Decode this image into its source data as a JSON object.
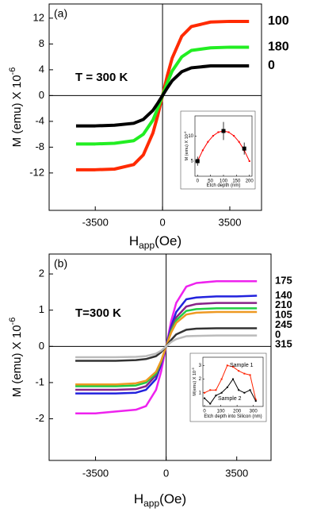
{
  "chart_data": [
    {
      "type": "line",
      "panel_label": "(a)",
      "annotation": "T = 300 K",
      "ylabel": "M (emu) X 10",
      "ylabel_exponent": "-6",
      "xlabel": "H",
      "xlabel_subscript": "app",
      "xlabel_unit": "(Oe)",
      "xlim": [
        -5900,
        5150
      ],
      "xticks": [
        -3500,
        0,
        3500
      ],
      "ylim": [
        -17.8,
        14.2
      ],
      "yticks": [
        -12,
        -8,
        -4,
        0,
        4,
        8,
        12
      ],
      "zero_lines": true,
      "legend": "right",
      "x": [
        -4500,
        -3500,
        -2500,
        -1500,
        -1000,
        -500,
        -250,
        0,
        250,
        500,
        1000,
        1500,
        2500,
        3500,
        4500
      ],
      "series": [
        {
          "name": "100",
          "color": "#ff2a00",
          "values": [
            -11.5,
            -11.5,
            -11.4,
            -10.7,
            -9.2,
            -5.8,
            -3.1,
            0,
            3.1,
            5.8,
            9.2,
            10.7,
            11.4,
            11.5,
            11.5
          ]
        },
        {
          "name": "180",
          "color": "#22ee22",
          "values": [
            -7.5,
            -7.5,
            -7.4,
            -7.0,
            -6.0,
            -3.8,
            -2.0,
            0,
            2.0,
            3.8,
            6.0,
            7.0,
            7.4,
            7.5,
            7.5
          ]
        },
        {
          "name": "0",
          "color": "#000000",
          "values": [
            -4.7,
            -4.7,
            -4.6,
            -4.3,
            -3.7,
            -2.3,
            -1.2,
            0,
            1.2,
            2.3,
            3.7,
            4.3,
            4.6,
            4.6,
            4.6
          ]
        }
      ]
    },
    {
      "type": "line",
      "inset": true,
      "ylabel": "M (emu) X 10",
      "ylabel_exponent": "-6",
      "xlabel": "Etch depth (nm)",
      "xlim": [
        -10,
        210
      ],
      "xticks": [
        0,
        50,
        100,
        150,
        200
      ],
      "ylim": [
        2,
        14
      ],
      "yticks": [
        5,
        10
      ],
      "series": [
        {
          "color": "#ff0000",
          "x": [
            0,
            20,
            40,
            60,
            80,
            100,
            120,
            140,
            160,
            180,
            200
          ],
          "values": [
            5,
            7.16,
            8.84,
            10.04,
            10.76,
            11,
            10.76,
            10.04,
            8.84,
            7.16,
            5
          ]
        },
        {
          "color": "#000000",
          "marker": "square",
          "x": [
            0,
            100,
            180
          ],
          "values": [
            5,
            11,
            7.5
          ],
          "errors": [
            0.9,
            1.8,
            1.2
          ]
        }
      ]
    },
    {
      "type": "line",
      "panel_label": "(b)",
      "annotation": "T=300 K",
      "ylabel": "M (emu) X 10",
      "ylabel_exponent": "-6",
      "xlabel": "H",
      "xlabel_subscript": "app",
      "xlabel_unit": "(Oe)",
      "xlim": [
        -5800,
        5200
      ],
      "xticks": [
        -3500,
        0,
        3500
      ],
      "ylim": [
        -3.15,
        2.55
      ],
      "yticks": [
        -2,
        -1,
        0,
        1,
        2
      ],
      "zero_lines": true,
      "legend": "right",
      "x": [
        -4500,
        -3500,
        -2500,
        -1500,
        -1000,
        -500,
        -250,
        0,
        250,
        500,
        1000,
        1500,
        2500,
        3500,
        4500
      ],
      "series": [
        {
          "name": "175",
          "color": "#ee22ee",
          "values": [
            -1.85,
            -1.85,
            -1.8,
            -1.75,
            -1.65,
            -1.2,
            -0.7,
            0,
            0.7,
            1.2,
            1.65,
            1.75,
            1.8,
            1.8,
            1.8
          ]
        },
        {
          "name": "140",
          "color": "#2222dd",
          "values": [
            -1.3,
            -1.3,
            -1.3,
            -1.28,
            -1.2,
            -0.9,
            -0.5,
            0,
            0.55,
            0.95,
            1.3,
            1.35,
            1.38,
            1.38,
            1.4
          ]
        },
        {
          "name": "210",
          "color": "#882288",
          "values": [
            -1.2,
            -1.2,
            -1.2,
            -1.18,
            -1.1,
            -0.8,
            -0.45,
            0,
            0.47,
            0.8,
            1.1,
            1.17,
            1.2,
            1.2,
            1.2
          ]
        },
        {
          "name": "105",
          "color": "#22cc44",
          "values": [
            -1.1,
            -1.1,
            -1.1,
            -1.08,
            -1.0,
            -0.75,
            -0.42,
            0,
            0.42,
            0.72,
            0.98,
            1.03,
            1.05,
            1.05,
            1.05
          ]
        },
        {
          "name": "245",
          "color": "#ee9922",
          "values": [
            -1.05,
            -1.05,
            -1.05,
            -1.02,
            -0.95,
            -0.7,
            -0.4,
            0,
            0.38,
            0.65,
            0.88,
            0.93,
            0.95,
            0.95,
            0.95
          ]
        },
        {
          "name": "0",
          "color": "#333333",
          "values": [
            -0.4,
            -0.4,
            -0.4,
            -0.38,
            -0.35,
            -0.27,
            -0.16,
            0,
            0.18,
            0.33,
            0.46,
            0.49,
            0.5,
            0.5,
            0.5
          ]
        },
        {
          "name": "315",
          "color": "#bbbbbb",
          "values": [
            -0.3,
            -0.3,
            -0.3,
            -0.29,
            -0.27,
            -0.2,
            -0.12,
            0,
            0.12,
            0.2,
            0.28,
            0.29,
            0.3,
            0.3,
            0.3
          ]
        }
      ]
    },
    {
      "type": "line",
      "inset": true,
      "ylabel": "M(emu) X 10",
      "ylabel_exponent": "-6",
      "xlabel": "Etch depth into Silicon (nm)",
      "xlim": [
        -10,
        360
      ],
      "xticks": [
        0,
        100,
        200,
        300
      ],
      "ylim": [
        0,
        3.6
      ],
      "yticks": [
        1,
        2,
        3
      ],
      "legend": "inline",
      "x": [
        0,
        35,
        70,
        105,
        140,
        175,
        210,
        245,
        280,
        315
      ],
      "series": [
        {
          "name": "Sample 1",
          "color": "#ff2200",
          "values": [
            1.0,
            1.2,
            1.2,
            2.0,
            3.0,
            2.9,
            2.6,
            2.4,
            2.3,
            0.5
          ]
        },
        {
          "name": "Sample 2",
          "color": "#000000",
          "values": [
            0.6,
            0.2,
            0.8,
            1.0,
            1.4,
            2.0,
            1.2,
            1.0,
            1.2,
            0.4
          ]
        }
      ]
    }
  ]
}
